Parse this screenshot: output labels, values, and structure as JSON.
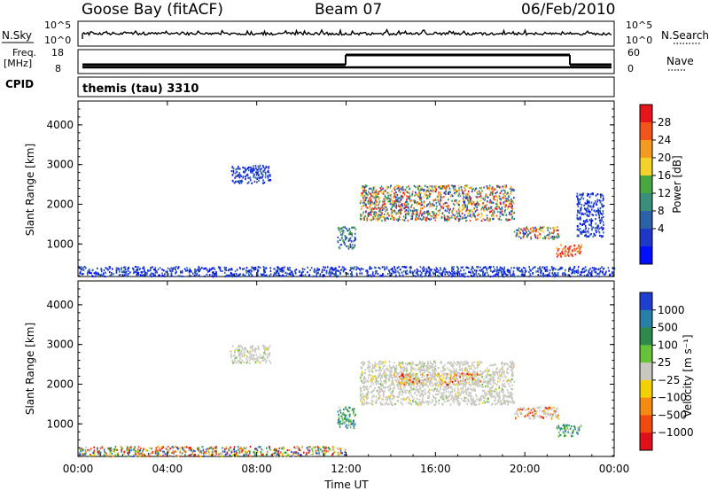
{
  "header": {
    "station": "Goose Bay (fitACF)",
    "beam": "Beam 07",
    "date": "06/Feb/2010"
  },
  "left_labels": {
    "nsky": "N.Sky",
    "freq": "Freq.",
    "mhz": "[MHz]",
    "cpid": "CPID"
  },
  "right_labels": {
    "nsearch": "N.Search",
    "nave": "Nave"
  },
  "scales": {
    "noise_top": "10^5",
    "noise_bottom": "10^0",
    "freq_top": "18",
    "freq_bottom": "8",
    "nave_top": "60",
    "nave_bottom": "0"
  },
  "cpid_text": "themis (tau) 3310",
  "colorbars": {
    "power": {
      "label": "Power [dB]",
      "ticks": [
        "28",
        "24",
        "20",
        "16",
        "12",
        "8",
        "4"
      ],
      "colors": [
        "#e8141c",
        "#f2541c",
        "#f59a20",
        "#f5d22a",
        "#49a741",
        "#3a8f7a",
        "#2b62a8",
        "#1f38c8",
        "#0010ff"
      ]
    },
    "velocity": {
      "label": "Velocity [m s⁻¹]",
      "ticks": [
        "1000",
        "500",
        "100",
        "25",
        "−25",
        "−100",
        "−500",
        "−1000"
      ],
      "colors": [
        "#1f3fd0",
        "#2a7fa8",
        "#2e8a4a",
        "#67c23a",
        "#c8c8c0",
        "#f5d000",
        "#f58a10",
        "#f04a10",
        "#e0101a"
      ]
    }
  },
  "chart_data": [
    {
      "type": "heatmap",
      "name": "Backscatter power",
      "ylabel": "Slant Range [km]",
      "xlabel": "",
      "x_ticks": [
        "00:00",
        "04:00",
        "08:00",
        "12:00",
        "16:00",
        "20:00",
        "00:00"
      ],
      "y_ticks": [
        1000,
        2000,
        3000,
        4000
      ],
      "xlim_hours": [
        0,
        24
      ],
      "ylim_km": [
        180,
        4600
      ],
      "regions": [
        {
          "t0": 0.0,
          "t1": 24.0,
          "r0": 200,
          "r1": 450,
          "level": "low"
        },
        {
          "t0": 6.8,
          "t1": 8.6,
          "r0": 2550,
          "r1": 3000,
          "level": "low"
        },
        {
          "t0": 11.6,
          "t1": 12.4,
          "r0": 900,
          "r1": 1450,
          "level": "mid"
        },
        {
          "t0": 12.6,
          "t1": 19.5,
          "r0": 1600,
          "r1": 2500,
          "level": "high"
        },
        {
          "t0": 19.5,
          "t1": 21.5,
          "r0": 1150,
          "r1": 1450,
          "level": "high"
        },
        {
          "t0": 21.4,
          "t1": 22.5,
          "r0": 700,
          "r1": 1000,
          "level": "max"
        },
        {
          "t0": 22.3,
          "t1": 23.5,
          "r0": 1200,
          "r1": 2300,
          "level": "low"
        }
      ]
    },
    {
      "type": "heatmap",
      "name": "Line-of-sight velocity",
      "ylabel": "Slant Range [km]",
      "xlabel": "Time UT",
      "x_ticks": [
        "00:00",
        "04:00",
        "08:00",
        "12:00",
        "16:00",
        "20:00",
        "00:00"
      ],
      "y_ticks": [
        1000,
        2000,
        3000,
        4000
      ],
      "xlim_hours": [
        0,
        24
      ],
      "ylim_km": [
        180,
        4600
      ],
      "regions": [
        {
          "t0": 0.0,
          "t1": 12.0,
          "r0": 200,
          "r1": 450,
          "level": "mixed"
        },
        {
          "t0": 6.8,
          "t1": 8.6,
          "r0": 2550,
          "r1": 3000,
          "level": "near-zero"
        },
        {
          "t0": 11.6,
          "t1": 12.4,
          "r0": 900,
          "r1": 1450,
          "level": "positive"
        },
        {
          "t0": 12.6,
          "t1": 19.5,
          "r0": 1500,
          "r1": 2600,
          "level": "near-zero"
        },
        {
          "t0": 14.0,
          "t1": 18.0,
          "r0": 2000,
          "r1": 2300,
          "level": "negative"
        },
        {
          "t0": 19.5,
          "t1": 21.5,
          "r0": 1150,
          "r1": 1450,
          "level": "negative"
        },
        {
          "t0": 21.4,
          "t1": 22.5,
          "r0": 700,
          "r1": 1000,
          "level": "positive"
        }
      ]
    }
  ]
}
